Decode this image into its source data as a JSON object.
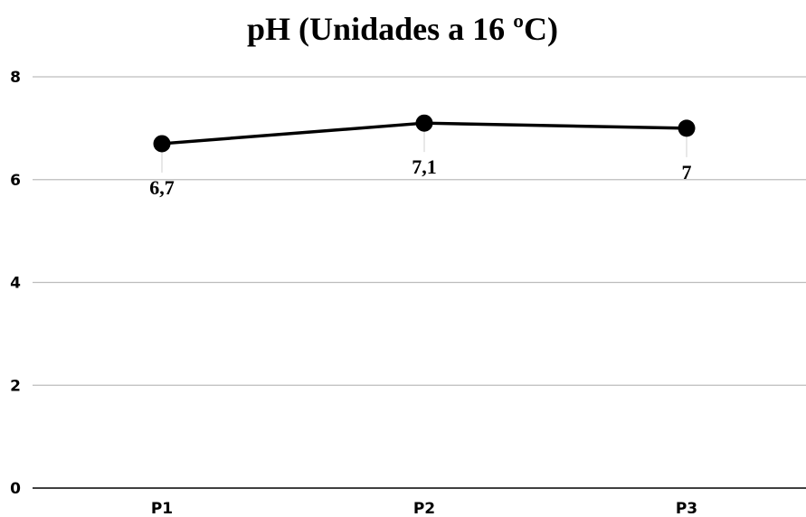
{
  "chart_data": {
    "type": "line",
    "title": "pH (Unidades a 16 ºC)",
    "categories": [
      "P1",
      "P2",
      "P3"
    ],
    "series": [
      {
        "values": [
          6.7,
          7.1,
          7
        ]
      }
    ],
    "data_labels": [
      "6,7",
      "7,1",
      "7"
    ],
    "yticks": [
      "0",
      "2",
      "4",
      "6",
      "8"
    ],
    "ylim": [
      0,
      8
    ],
    "grid": true,
    "legend": "none",
    "colors": {
      "line": "#000000",
      "marker": "#000000",
      "grid": "#bdbdbd"
    }
  }
}
